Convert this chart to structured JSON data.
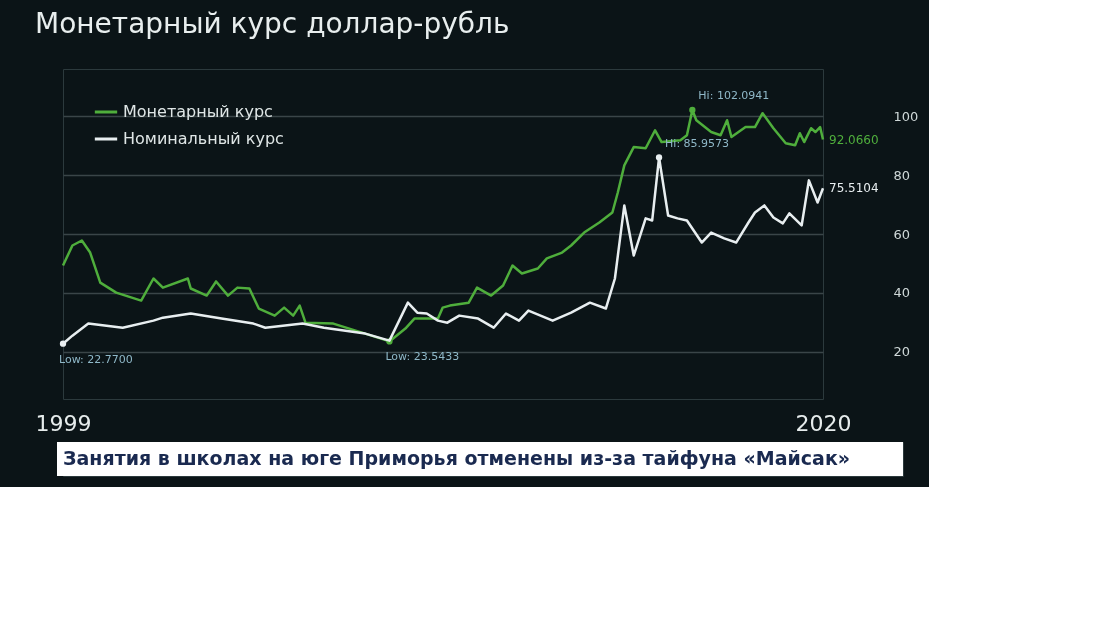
{
  "chart_data": {
    "type": "line",
    "title": "Монетарный курс доллар-рубль",
    "xlim": [
      1999,
      2020
    ],
    "xticks": [
      1999,
      2020
    ],
    "ylim": [
      4,
      116
    ],
    "yticks": [
      20,
      40,
      60,
      80,
      100
    ],
    "grid": "y",
    "legend": "top left",
    "line_style": "solid",
    "series": [
      {
        "name": "Монетарный курс",
        "color": "#4fae3c",
        "x": [
          1999.0,
          1999.26,
          1999.52,
          1999.75,
          2000.03,
          2000.47,
          2001.16,
          2001.5,
          2001.76,
          2002.45,
          2002.53,
          2002.97,
          2003.23,
          2003.56,
          2003.82,
          2004.15,
          2004.41,
          2004.85,
          2005.11,
          2005.36,
          2005.54,
          2005.7,
          2006.47,
          2007.35,
          2008.02,
          2008.46,
          2008.71,
          2009.36,
          2009.49,
          2009.69,
          2010.21,
          2010.44,
          2010.83,
          2011.16,
          2011.42,
          2011.68,
          2012.12,
          2012.37,
          2012.79,
          2013.04,
          2013.4,
          2013.82,
          2014.18,
          2014.33,
          2014.51,
          2014.77,
          2015.1,
          2015.36,
          2015.54,
          2016.06,
          2016.24,
          2016.39,
          2016.5,
          2016.91,
          2017.17,
          2017.35,
          2017.47,
          2017.86,
          2018.12,
          2018.33,
          2018.63,
          2018.97,
          2019.23,
          2019.36,
          2019.48,
          2019.67,
          2019.79,
          2019.92,
          2020.0
        ],
        "values": [
          49.3,
          56.1,
          57.8,
          53.7,
          43.5,
          40.1,
          37.4,
          44.9,
          41.8,
          44.9,
          41.5,
          39.1,
          43.9,
          39.1,
          41.8,
          41.5,
          34.7,
          32.3,
          35.0,
          32.3,
          35.7,
          29.9,
          29.6,
          26.2,
          23.5433,
          27.9,
          31.3,
          31.3,
          35.0,
          35.7,
          36.7,
          41.8,
          39.1,
          42.5,
          49.3,
          46.6,
          48.3,
          51.7,
          53.7,
          56.1,
          60.5,
          63.9,
          67.3,
          74.1,
          83.3,
          89.5,
          89.1,
          95.2,
          91.2,
          91.8,
          93.5,
          102.0941,
          98.6,
          94.6,
          93.5,
          98.6,
          92.9,
          96.3,
          96.3,
          101.0,
          95.9,
          90.8,
          90.1,
          94.2,
          91.2,
          95.9,
          94.6,
          96.3,
          92.066
        ],
        "value_labels": [
          null,
          null,
          null,
          null,
          null,
          null,
          null,
          null,
          null,
          null,
          null,
          null,
          null,
          null,
          null,
          null,
          null,
          null,
          null,
          null,
          null,
          null,
          null,
          null,
          "Low: 23.5433",
          null,
          null,
          null,
          null,
          null,
          null,
          null,
          null,
          null,
          null,
          null,
          null,
          null,
          null,
          null,
          null,
          null,
          null,
          null,
          null,
          null,
          null,
          null,
          null,
          null,
          null,
          "Hi: 102.0941",
          null,
          null,
          null,
          null,
          null,
          null,
          null,
          null,
          null,
          null,
          null,
          null,
          null,
          null,
          null,
          null,
          "92.0660"
        ]
      },
      {
        "name": "Номинальный курс",
        "color": "#e8eef0",
        "x": [
          1999.0,
          1999.26,
          1999.7,
          2000.65,
          2001.5,
          2001.76,
          2002.53,
          2003.38,
          2004.26,
          2004.59,
          2005.62,
          2006.21,
          2007.35,
          2008.02,
          2008.53,
          2008.79,
          2009.05,
          2009.36,
          2009.62,
          2009.95,
          2010.47,
          2010.9,
          2011.24,
          2011.6,
          2011.86,
          2012.53,
          2013.04,
          2013.56,
          2014.0,
          2014.25,
          2014.51,
          2014.77,
          2015.1,
          2015.28,
          2015.47,
          2015.72,
          2015.98,
          2016.24,
          2016.65,
          2016.91,
          2017.27,
          2017.6,
          2017.94,
          2018.12,
          2018.38,
          2018.63,
          2018.89,
          2019.07,
          2019.41,
          2019.61,
          2019.85,
          2020.0
        ],
        "values": [
          22.77,
          25.5,
          29.6,
          28.2,
          30.6,
          31.6,
          33.0,
          31.3,
          29.6,
          28.2,
          29.6,
          28.2,
          26.2,
          23.8,
          36.7,
          33.3,
          33.0,
          30.6,
          29.9,
          32.3,
          31.3,
          28.2,
          33.0,
          30.6,
          34.0,
          30.6,
          33.3,
          36.7,
          34.7,
          44.9,
          69.7,
          52.7,
          65.3,
          64.6,
          85.9573,
          66.3,
          65.3,
          64.6,
          57.1,
          60.5,
          58.5,
          57.1,
          63.9,
          67.3,
          69.7,
          65.6,
          63.6,
          67.0,
          62.9,
          78.2,
          70.7,
          75.5104
        ],
        "value_labels": [
          "Low: 22.7700",
          null,
          null,
          null,
          null,
          null,
          null,
          null,
          null,
          null,
          null,
          null,
          null,
          null,
          null,
          null,
          null,
          null,
          null,
          null,
          null,
          null,
          null,
          null,
          null,
          null,
          null,
          null,
          null,
          null,
          null,
          null,
          null,
          null,
          "Hi: 85.9573",
          null,
          null,
          null,
          null,
          null,
          null,
          null,
          null,
          null,
          null,
          null,
          null,
          null,
          null,
          null,
          null,
          "75.5104"
        ]
      }
    ],
    "annotations": [
      "Занятия в школах на юге Приморья отменены из-за тайфуна «Майсак»"
    ]
  }
}
